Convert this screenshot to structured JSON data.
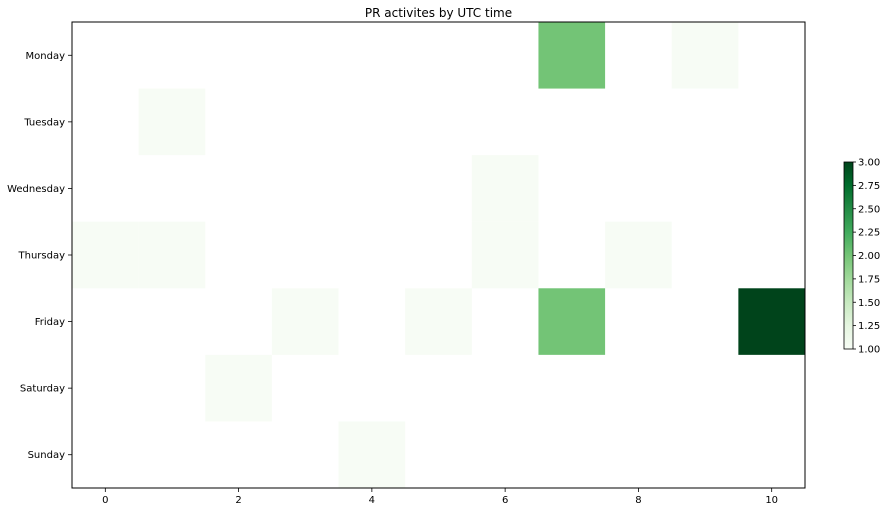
{
  "chart_data": {
    "type": "heatmap",
    "title": "PR activites by UTC time",
    "xlabel": "",
    "ylabel": "",
    "x": [
      0,
      1,
      2,
      3,
      4,
      5,
      6,
      7,
      8,
      9,
      10
    ],
    "x_ticks": [
      "0",
      "2",
      "4",
      "6",
      "8",
      "10"
    ],
    "x_tick_values": [
      0,
      2,
      4,
      6,
      8,
      10
    ],
    "y_categories": [
      "Monday",
      "Tuesday",
      "Wednesday",
      "Thursday",
      "Friday",
      "Saturday",
      "Sunday"
    ],
    "cells": [
      {
        "day": "Monday",
        "hour": 7,
        "value": 2
      },
      {
        "day": "Monday",
        "hour": 9,
        "value": 1
      },
      {
        "day": "Tuesday",
        "hour": 1,
        "value": 1
      },
      {
        "day": "Wednesday",
        "hour": 6,
        "value": 1
      },
      {
        "day": "Thursday",
        "hour": 0,
        "value": 1
      },
      {
        "day": "Thursday",
        "hour": 1,
        "value": 1
      },
      {
        "day": "Thursday",
        "hour": 6,
        "value": 1
      },
      {
        "day": "Thursday",
        "hour": 8,
        "value": 1
      },
      {
        "day": "Friday",
        "hour": 3,
        "value": 1
      },
      {
        "day": "Friday",
        "hour": 5,
        "value": 1
      },
      {
        "day": "Friday",
        "hour": 7,
        "value": 2
      },
      {
        "day": "Friday",
        "hour": 10,
        "value": 3
      },
      {
        "day": "Saturday",
        "hour": 2,
        "value": 1
      },
      {
        "day": "Sunday",
        "hour": 4,
        "value": 1
      }
    ],
    "colorbar": {
      "min": 1.0,
      "max": 3.0,
      "ticks": [
        "1.00",
        "1.25",
        "1.50",
        "1.75",
        "2.00",
        "2.25",
        "2.50",
        "2.75",
        "3.00"
      ],
      "tick_values": [
        1.0,
        1.25,
        1.5,
        1.75,
        2.0,
        2.25,
        2.5,
        2.75,
        3.0
      ],
      "colormap": "Greens",
      "colors": {
        "1": "#f7fcf5",
        "2": "#73c476",
        "3": "#00441b"
      }
    },
    "xlim": [
      -0.5,
      10.5
    ],
    "grid": false,
    "legend": "none"
  }
}
